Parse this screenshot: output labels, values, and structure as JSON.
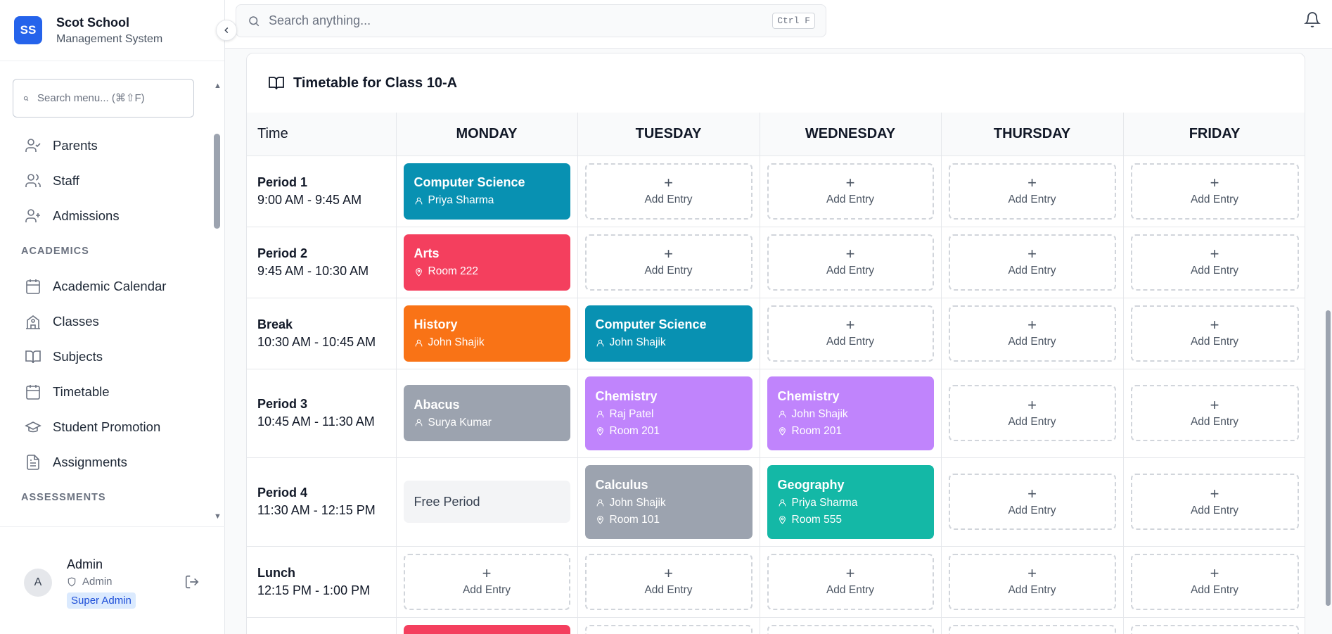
{
  "brand": {
    "initials": "SS",
    "name": "Scot School",
    "subtitle": "Management System"
  },
  "search": {
    "placeholder": "Search anything...",
    "shortcut": "Ctrl F"
  },
  "sidebar": {
    "search_placeholder": "Search menu... (⌘⇧F)",
    "items_top": [
      {
        "label": "Parents",
        "icon": "user-check-icon"
      },
      {
        "label": "Staff",
        "icon": "users-icon"
      },
      {
        "label": "Admissions",
        "icon": "user-plus-icon"
      }
    ],
    "section_academics": "ACADEMICS",
    "items_academics": [
      {
        "label": "Academic Calendar",
        "icon": "calendar-days-icon"
      },
      {
        "label": "Classes",
        "icon": "school-icon"
      },
      {
        "label": "Subjects",
        "icon": "book-open-icon"
      },
      {
        "label": "Timetable",
        "icon": "calendar-icon"
      },
      {
        "label": "Student Promotion",
        "icon": "graduation-cap-icon"
      },
      {
        "label": "Assignments",
        "icon": "file-text-icon"
      }
    ],
    "section_assessments": "ASSESSMENTS"
  },
  "user": {
    "avatar": "A",
    "name": "Admin",
    "role": "Admin",
    "badge": "Super Admin"
  },
  "timetable": {
    "title": "Timetable for Class 10-A",
    "time_header": "Time",
    "days": [
      "MONDAY",
      "TUESDAY",
      "WEDNESDAY",
      "THURSDAY",
      "FRIDAY"
    ],
    "add_label": "Add Entry",
    "free_label": "Free Period",
    "rows": [
      {
        "label": "Period 1",
        "time": "9:00 AM - 9:45 AM"
      },
      {
        "label": "Period 2",
        "time": "9:45 AM - 10:30 AM"
      },
      {
        "label": "Break",
        "time": "10:30 AM - 10:45 AM"
      },
      {
        "label": "Period 3",
        "time": "10:45 AM - 11:30 AM"
      },
      {
        "label": "Period 4",
        "time": "11:30 AM - 12:15 PM"
      },
      {
        "label": "Lunch",
        "time": "12:15 PM - 1:00 PM"
      }
    ],
    "entries": {
      "p1_mon": {
        "subject": "Computer Science",
        "teacher": "Priya Sharma",
        "color": "#0891b2"
      },
      "p2_mon": {
        "subject": "Arts",
        "room": "Room 222",
        "color": "#f43f5e"
      },
      "br_mon": {
        "subject": "History",
        "teacher": "John Shajik",
        "color": "#f97316"
      },
      "br_tue": {
        "subject": "Computer Science",
        "teacher": "John Shajik",
        "color": "#0891b2"
      },
      "p3_mon": {
        "subject": "Abacus",
        "teacher": "Surya Kumar",
        "color": "#9ca3af"
      },
      "p3_tue": {
        "subject": "Chemistry",
        "teacher": "Raj Patel",
        "room": "Room 201",
        "color": "#c084fc"
      },
      "p3_wed": {
        "subject": "Chemistry",
        "teacher": "John Shajik",
        "room": "Room 201",
        "color": "#c084fc"
      },
      "p4_tue": {
        "subject": "Calculus",
        "teacher": "John Shajik",
        "room": "Room 101",
        "color": "#9ca3af"
      },
      "p4_wed": {
        "subject": "Geography",
        "teacher": "Priya Sharma",
        "room": "Room 555",
        "color": "#14b8a6"
      }
    },
    "next_row_mon_color": "#f43f5e"
  }
}
